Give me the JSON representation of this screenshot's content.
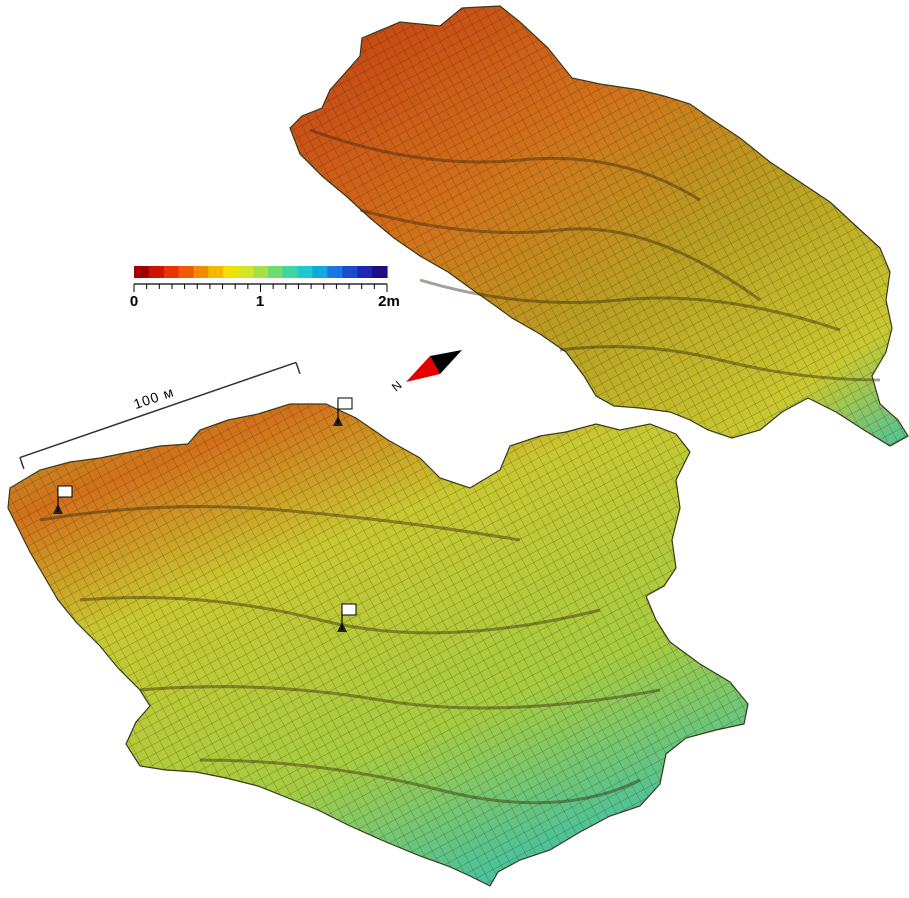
{
  "colorbar": {
    "colors": [
      "#a00000",
      "#cc1500",
      "#e63300",
      "#f05a00",
      "#f28a00",
      "#f5b800",
      "#f2e000",
      "#d2e62a",
      "#a6e04a",
      "#6edc70",
      "#3ed6a4",
      "#1ec8cc",
      "#14a8e0",
      "#1a78e0",
      "#1a4cd2",
      "#1f26b4",
      "#1b0e86"
    ],
    "tick_labels": [
      "0",
      "1",
      "2m"
    ],
    "range": [
      0,
      2
    ],
    "unit": "m"
  },
  "scale_bar": {
    "label": "100 м",
    "length_m": 100
  },
  "north_arrow": {
    "label": "N",
    "tip_color": "#e60000",
    "tail_color": "#000000"
  },
  "markers": [
    {
      "name": "flag"
    },
    {
      "name": "flag"
    },
    {
      "name": "flag"
    }
  ],
  "terrain_colors": {
    "high": "#c43a12",
    "upper": "#d2701a",
    "mid": "#b8a022",
    "lower": "#c8c830",
    "low": "#a6cc40",
    "lowest": "#4cc29a",
    "mesh": "#2a2a14"
  }
}
